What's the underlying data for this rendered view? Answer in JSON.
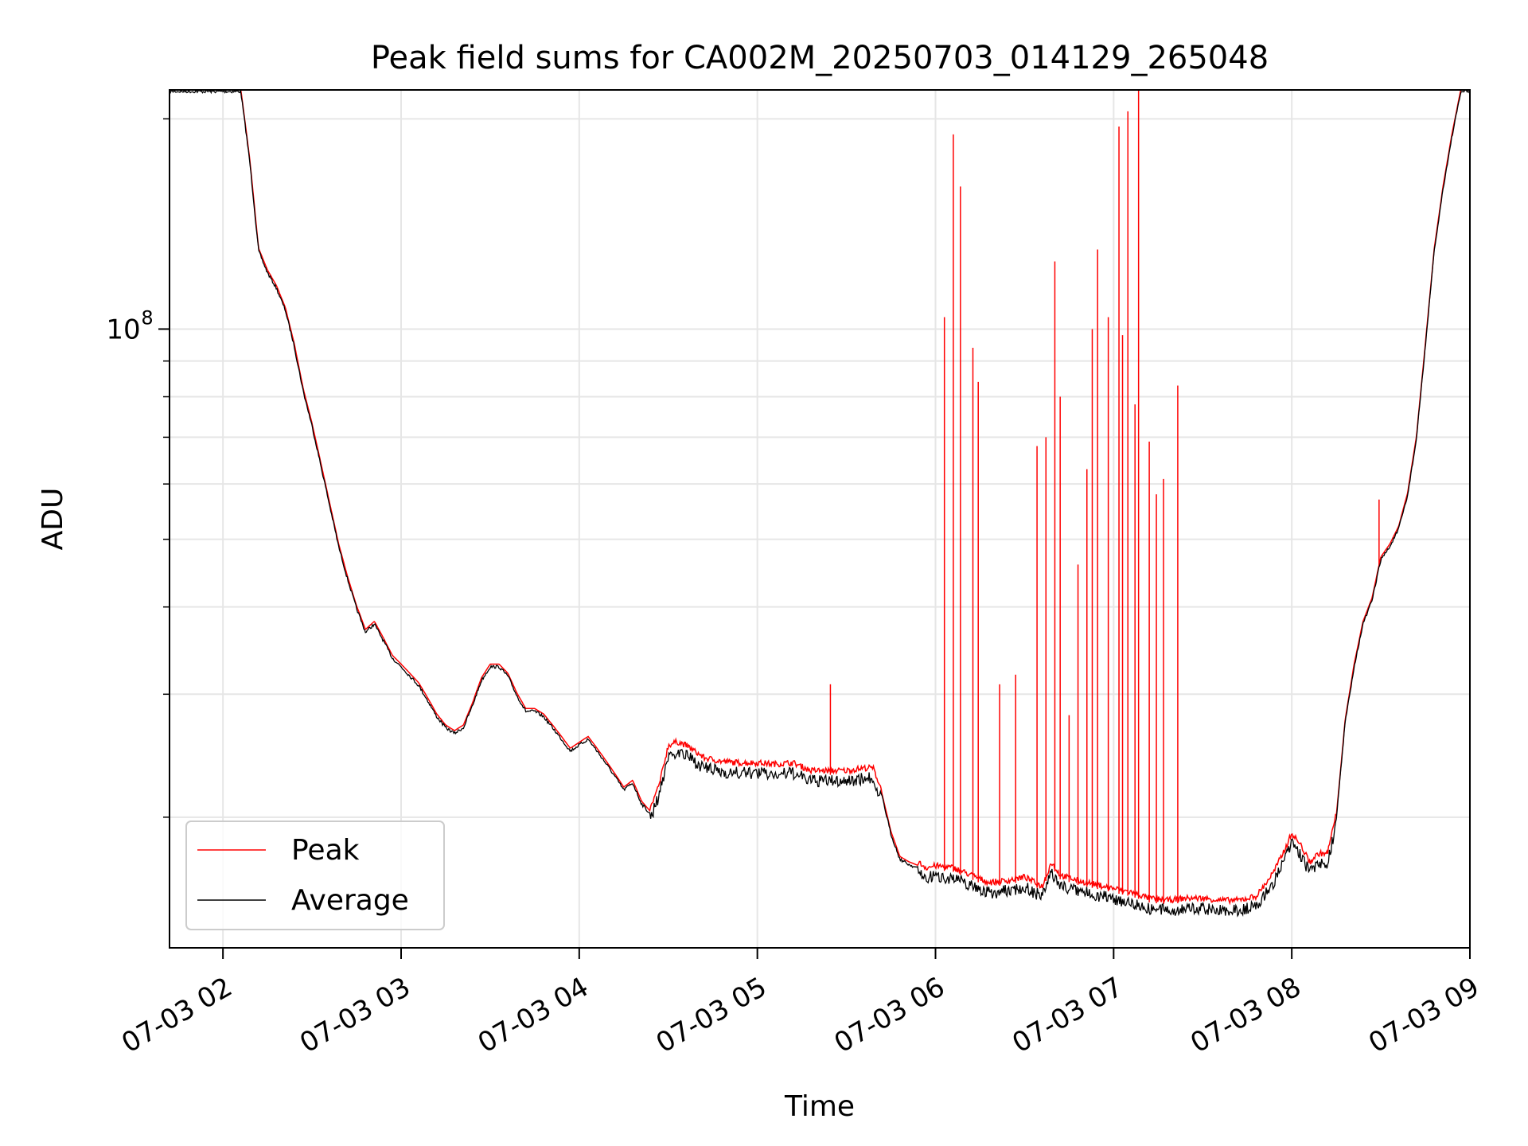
{
  "chart_data": {
    "type": "line",
    "title": "Peak field sums for CA002M_20250703_014129_265048",
    "xlabel": "Time",
    "ylabel": "ADU",
    "x_unit": "hours (07-03)",
    "xlim": [
      1.7,
      9.0
    ],
    "ylim": [
      13000000,
      220000000
    ],
    "yscale": "log",
    "grid": true,
    "legend": "lower-left",
    "colors": {
      "Peak": "#ff0000",
      "Average": "#000000",
      "grid": "#e6e6e6"
    },
    "x_ticks": [
      {
        "value": 2,
        "label": "07-03 02"
      },
      {
        "value": 3,
        "label": "07-03 03"
      },
      {
        "value": 4,
        "label": "07-03 04"
      },
      {
        "value": 5,
        "label": "07-03 05"
      },
      {
        "value": 6,
        "label": "07-03 06"
      },
      {
        "value": 7,
        "label": "07-03 07"
      },
      {
        "value": 8,
        "label": "07-03 08"
      },
      {
        "value": 9,
        "label": "07-03 09"
      }
    ],
    "y_major_ticks": [
      {
        "value": 100000000,
        "label_base": "10",
        "label_exp": "8"
      }
    ],
    "y_minor_ticks": [
      20000000,
      30000000,
      40000000,
      50000000,
      60000000,
      70000000,
      80000000,
      90000000,
      200000000
    ],
    "series": [
      {
        "name": "Average",
        "x": [
          2.0,
          2.05,
          2.1,
          2.15,
          2.2,
          2.25,
          2.3,
          2.35,
          2.4,
          2.45,
          2.5,
          2.55,
          2.6,
          2.65,
          2.7,
          2.75,
          2.8,
          2.85,
          2.9,
          2.95,
          3.0,
          3.05,
          3.1,
          3.15,
          3.2,
          3.25,
          3.3,
          3.35,
          3.4,
          3.45,
          3.5,
          3.55,
          3.6,
          3.65,
          3.7,
          3.75,
          3.8,
          3.85,
          3.9,
          3.95,
          4.0,
          4.05,
          4.1,
          4.15,
          4.2,
          4.25,
          4.3,
          4.35,
          4.4,
          4.45,
          4.5,
          4.55,
          4.6,
          4.65,
          4.7,
          4.8,
          4.9,
          5.0,
          5.1,
          5.2,
          5.3,
          5.4,
          5.5,
          5.6,
          5.65,
          5.7,
          5.75,
          5.8,
          5.85,
          5.9,
          5.95,
          6.0,
          6.1,
          6.2,
          6.3,
          6.4,
          6.5,
          6.6,
          6.65,
          6.7,
          6.8,
          6.9,
          7.0,
          7.1,
          7.2,
          7.3,
          7.4,
          7.5,
          7.6,
          7.7,
          7.8,
          7.85,
          7.9,
          7.95,
          8.0,
          8.05,
          8.1,
          8.15,
          8.2,
          8.25,
          8.3,
          8.35,
          8.4,
          8.45,
          8.5,
          8.55,
          8.6,
          8.65,
          8.7,
          8.75,
          8.8,
          8.85,
          8.9,
          8.95,
          9.0
        ],
        "y": [
          220000000,
          220000000,
          220000000,
          175000000,
          130000000,
          121000000,
          115000000,
          107000000,
          95000000,
          82000000,
          73000000,
          64000000,
          56000000,
          49000000,
          44000000,
          40000000,
          37000000,
          38000000,
          36000000,
          34000000,
          33000000,
          32000000,
          31000000,
          29500000,
          28000000,
          27000000,
          26500000,
          27000000,
          29000000,
          31500000,
          33000000,
          33000000,
          32000000,
          30000000,
          28500000,
          28500000,
          28000000,
          27000000,
          26000000,
          25000000,
          25500000,
          26000000,
          25000000,
          24000000,
          23000000,
          22000000,
          22500000,
          21000000,
          20300000,
          22000000,
          25000000,
          25300000,
          25000000,
          24500000,
          24000000,
          23700000,
          23600000,
          23600000,
          23500000,
          23600000,
          23000000,
          23000000,
          23000000,
          23200000,
          23200000,
          21500000,
          19000000,
          17500000,
          17200000,
          17000000,
          16700000,
          16800000,
          16700000,
          16300000,
          15900000,
          16000000,
          16200000,
          15700000,
          17000000,
          16300000,
          16000000,
          15800000,
          15600000,
          15400000,
          15100000,
          15000000,
          15100000,
          15100000,
          15000000,
          15000000,
          15200000,
          15800000,
          16500000,
          17500000,
          18700000,
          18000000,
          17000000,
          17500000,
          17500000,
          20000000,
          27500000,
          33000000,
          38000000,
          41000000,
          47000000,
          49000000,
          52000000,
          58000000,
          70000000,
          95000000,
          130000000,
          160000000,
          190000000,
          220000000,
          220000000
        ]
      },
      {
        "name": "Peak",
        "spikes": [
          {
            "x": 5.41,
            "y": 31000000
          },
          {
            "x": 6.05,
            "y": 104000000
          },
          {
            "x": 6.1,
            "y": 190000000
          },
          {
            "x": 6.14,
            "y": 160000000
          },
          {
            "x": 6.21,
            "y": 94000000
          },
          {
            "x": 6.24,
            "y": 84000000
          },
          {
            "x": 6.36,
            "y": 31000000
          },
          {
            "x": 6.45,
            "y": 32000000
          },
          {
            "x": 6.57,
            "y": 68000000
          },
          {
            "x": 6.62,
            "y": 70000000
          },
          {
            "x": 6.67,
            "y": 125000000
          },
          {
            "x": 6.7,
            "y": 80000000
          },
          {
            "x": 6.75,
            "y": 28000000
          },
          {
            "x": 6.8,
            "y": 46000000
          },
          {
            "x": 6.85,
            "y": 63000000
          },
          {
            "x": 6.88,
            "y": 100000000
          },
          {
            "x": 6.91,
            "y": 130000000
          },
          {
            "x": 6.97,
            "y": 104000000
          },
          {
            "x": 7.03,
            "y": 195000000
          },
          {
            "x": 7.05,
            "y": 98000000
          },
          {
            "x": 7.08,
            "y": 205000000
          },
          {
            "x": 7.12,
            "y": 78000000
          },
          {
            "x": 7.14,
            "y": 220000000
          },
          {
            "x": 7.2,
            "y": 69000000
          },
          {
            "x": 7.24,
            "y": 58000000
          },
          {
            "x": 7.28,
            "y": 61000000
          },
          {
            "x": 7.36,
            "y": 83000000
          },
          {
            "x": 8.49,
            "y": 57000000
          }
        ]
      }
    ]
  }
}
